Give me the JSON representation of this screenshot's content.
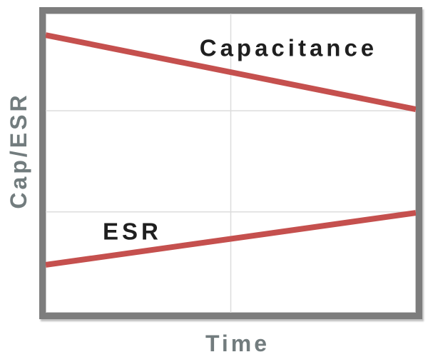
{
  "page": {
    "background": "#ffffff"
  },
  "colors": {
    "line_red": "#C5504E",
    "frame_gray": "#7d7d7d",
    "axis_label_gray": "#727c7e",
    "series_label_black": "#1f1f1f",
    "gridline_gray": "#dcdcdc",
    "plot_background": "#ffffff"
  },
  "chart_data": {
    "type": "line",
    "title": "",
    "xlabel": "Time",
    "ylabel": "Cap/ESR",
    "x_range": [
      0,
      1
    ],
    "y_range": [
      0,
      1
    ],
    "axis_tick_labels": "none",
    "legend_position": "inline-labels",
    "grid": {
      "visible": true,
      "color": "#dcdcdc",
      "vertical_x": [
        0.5
      ],
      "horizontal_y": [
        0.675,
        0.337
      ]
    },
    "frame_color": "#7d7d7d",
    "series": [
      {
        "name": "Capacitance",
        "label": "Capacitance",
        "label_color": "#1f1f1f",
        "color": "#C5504E",
        "stroke_width": 8,
        "x": [
          0,
          1
        ],
        "y": [
          0.928,
          0.68
        ],
        "trend": "decreasing",
        "label_pos": {
          "x": 0.656,
          "y": 0.885
        }
      },
      {
        "name": "ESR",
        "label": "ESR",
        "label_color": "#1f1f1f",
        "color": "#C5504E",
        "stroke_width": 8,
        "x": [
          0,
          1
        ],
        "y": [
          0.16,
          0.334
        ],
        "trend": "increasing",
        "label_pos": {
          "x": 0.234,
          "y": 0.272
        }
      }
    ]
  }
}
